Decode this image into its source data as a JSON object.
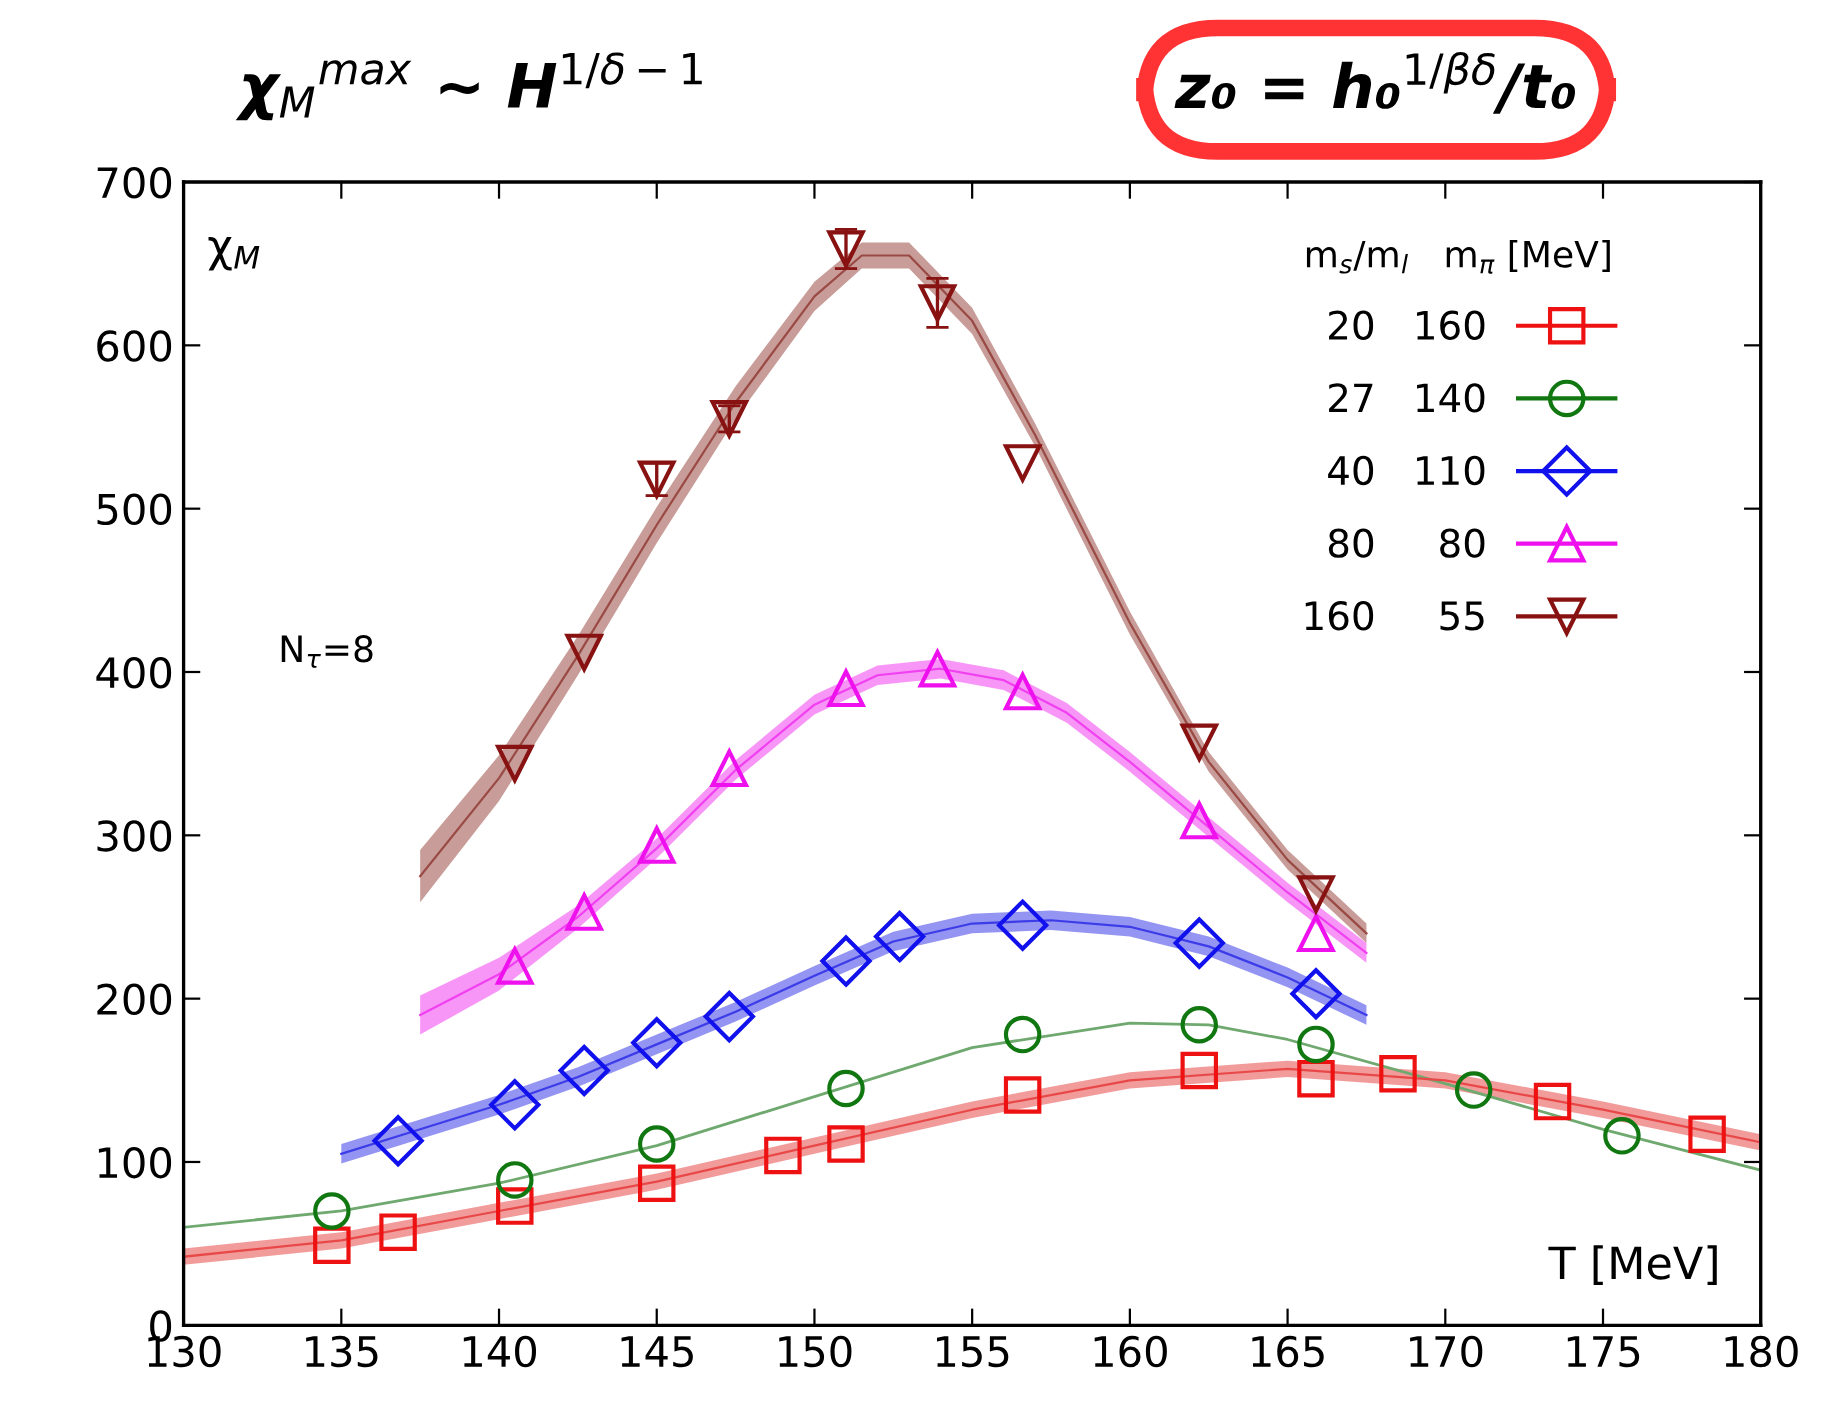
{
  "chart_data": {
    "type": "scatter",
    "title": "χ$_{M}$$^{max}$ ∼ H$^{1/δ−1}$",
    "xlabel": "T [MeV]",
    "ylabel": "χ$_{M}$",
    "legend_title": "m$_{s}$/m$_{l}$   m$_{π}$ [MeV]",
    "annotations": [
      "N$_{τ}$=8",
      "z₀ = h₀$^{1/βδ}$/t₀"
    ],
    "xlim": [
      130,
      180
    ],
    "xticks": [
      130,
      135,
      140,
      145,
      150,
      155,
      160,
      165,
      170,
      175,
      180
    ],
    "ylim": [
      0,
      700
    ],
    "yticks": [
      0,
      100,
      200,
      300,
      400,
      500,
      600,
      700
    ],
    "grid": false,
    "legend": "top right",
    "series": [
      {
        "type": "line",
        "color": "#e84848",
        "x": [
          130,
          135,
          140,
          145,
          150,
          155,
          160,
          165,
          170,
          175,
          180
        ],
        "values": [
          42,
          52,
          70,
          88,
          110,
          132,
          150,
          157,
          150,
          132,
          112
        ],
        "lower": [
          37,
          47,
          65,
          83,
          105,
          127,
          145,
          152,
          145,
          127,
          107
        ],
        "upper": [
          47,
          57,
          75,
          93,
          115,
          137,
          155,
          162,
          155,
          137,
          117
        ]
      },
      {
        "type": "line",
        "color": "#6fa96f",
        "x": [
          130,
          135,
          140,
          145,
          150,
          155,
          160,
          162.5,
          165,
          170,
          175,
          180
        ],
        "values": [
          60,
          70,
          87,
          110,
          140,
          170,
          185,
          184,
          175,
          148,
          120,
          95
        ]
      },
      {
        "type": "line",
        "color": "#3c3ce8",
        "x": [
          135,
          137.5,
          140,
          142.5,
          145,
          147.5,
          150,
          152.5,
          155,
          157.5,
          160,
          162.5,
          165,
          167.5
        ],
        "values": [
          105,
          120,
          135,
          152,
          172,
          192,
          214,
          235,
          246,
          248,
          244,
          232,
          213,
          190
        ],
        "lower": [
          99,
          114,
          129,
          146,
          166,
          186,
          208,
          229,
          240,
          242,
          238,
          226,
          207,
          184
        ],
        "upper": [
          111,
          126,
          141,
          158,
          178,
          198,
          220,
          241,
          252,
          254,
          250,
          238,
          219,
          196
        ]
      },
      {
        "type": "line",
        "color": "#f040f0",
        "x": [
          137.5,
          140,
          142.5,
          145,
          147.5,
          150,
          152,
          154,
          156,
          158,
          160,
          162.5,
          165,
          167.5
        ],
        "values": [
          190,
          215,
          250,
          292,
          340,
          380,
          398,
          402,
          395,
          375,
          345,
          305,
          265,
          228
        ],
        "lower": [
          178,
          205,
          243,
          286,
          334,
          374,
          392,
          396,
          389,
          369,
          339,
          299,
          259,
          222
        ],
        "upper": [
          202,
          225,
          257,
          298,
          346,
          386,
          404,
          408,
          401,
          381,
          351,
          311,
          271,
          234
        ]
      },
      {
        "type": "line",
        "color": "#9a4a44",
        "x": [
          137.5,
          140,
          142.5,
          145,
          147.5,
          150,
          151.5,
          153,
          155,
          157,
          160,
          162.5,
          165,
          167.5
        ],
        "values": [
          275,
          335,
          410,
          490,
          565,
          630,
          655,
          655,
          615,
          545,
          430,
          345,
          285,
          240
        ],
        "lower": [
          259,
          321,
          398,
          479,
          555,
          621,
          647,
          647,
          607,
          538,
          423,
          339,
          279,
          234
        ],
        "upper": [
          291,
          349,
          422,
          501,
          575,
          639,
          663,
          663,
          623,
          552,
          437,
          351,
          291,
          246
        ]
      },
      {
        "name": "20   160",
        "marker": "square",
        "color": "#ee1111",
        "x": [
          134.7,
          136.8,
          140.5,
          145,
          149,
          151,
          156.6,
          162.2,
          165.9,
          168.5,
          173.4,
          178.3
        ],
        "values": [
          49,
          57,
          73,
          87,
          104,
          111,
          141,
          156,
          151,
          154,
          137,
          117
        ]
      },
      {
        "name": "27   140",
        "marker": "circle",
        "color": "#117711",
        "x": [
          134.7,
          140.5,
          145,
          151,
          156.6,
          162.2,
          165.9,
          170.9,
          175.6
        ],
        "values": [
          70,
          89,
          111,
          145,
          178,
          184,
          172,
          144,
          116
        ]
      },
      {
        "name": "40   110",
        "marker": "diamond",
        "color": "#1111ee",
        "x": [
          136.8,
          140.5,
          142.7,
          145,
          147.3,
          151,
          152.7,
          156.6,
          162.2,
          165.9
        ],
        "values": [
          113,
          135,
          156,
          173,
          189,
          223,
          238,
          245,
          234,
          203
        ]
      },
      {
        "name": "80     80",
        "marker": "triangle",
        "color": "#ee11ee",
        "x": [
          140.5,
          142.7,
          145,
          147.3,
          151,
          153.9,
          156.6,
          162.2,
          165.9
        ],
        "values": [
          220,
          253,
          294,
          341,
          390,
          402,
          388,
          309,
          240
        ]
      },
      {
        "name": "160     55",
        "marker": "triangle_down",
        "color": "#881111",
        "x": [
          140.5,
          142.7,
          145,
          147.3,
          151,
          153.9,
          156.6,
          162.2,
          165.9
        ],
        "values": [
          344,
          412,
          518,
          555,
          659,
          626,
          528,
          357,
          264
        ],
        "errors": [
          null,
          null,
          10,
          8,
          12,
          15,
          null,
          null,
          null
        ]
      }
    ]
  }
}
